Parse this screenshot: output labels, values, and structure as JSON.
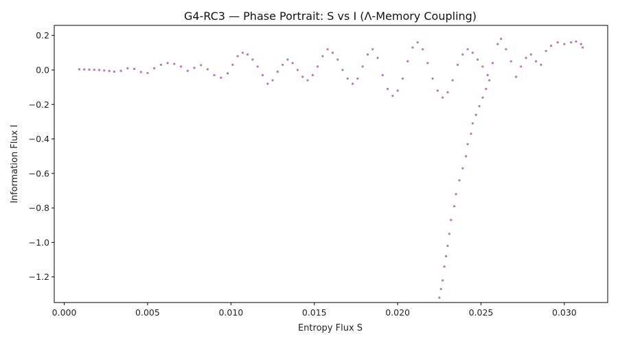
{
  "chart_data": {
    "type": "scatter",
    "title": "G4-RC3 — Phase Portrait: S vs I (Λ-Memory Coupling)",
    "xlabel": "Entropy Flux S",
    "ylabel": "Information Flux I",
    "xlim": [
      -0.0006,
      0.0326
    ],
    "ylim": [
      -1.3484,
      0.2584
    ],
    "x_ticks": [
      0.0,
      0.005,
      0.01,
      0.015,
      0.02,
      0.025,
      0.03
    ],
    "x_tick_labels": [
      "0.000",
      "0.005",
      "0.010",
      "0.015",
      "0.020",
      "0.025",
      "0.030"
    ],
    "y_ticks": [
      0.2,
      0.0,
      -0.2,
      -0.4,
      -0.6,
      -0.8,
      -1.0,
      -1.2
    ],
    "y_tick_labels": [
      "0.2",
      "0.0",
      "−0.2",
      "−0.4",
      "−0.6",
      "−0.8",
      "−1.0",
      "−1.2"
    ],
    "grid": false,
    "point_color": "#800080",
    "point_opacity": 0.55,
    "series": [
      {
        "points": [
          [
            0.0009,
            0.004
          ],
          [
            0.0012,
            0.003
          ],
          [
            0.0015,
            0.002
          ],
          [
            0.0018,
            0.001
          ],
          [
            0.0021,
            0.0
          ],
          [
            0.0024,
            -0.003
          ],
          [
            0.0027,
            -0.006
          ],
          [
            0.003,
            -0.01
          ],
          [
            0.0034,
            -0.005
          ],
          [
            0.0038,
            0.01
          ],
          [
            0.0042,
            0.006
          ],
          [
            0.0046,
            -0.012
          ],
          [
            0.005,
            -0.018
          ],
          [
            0.0054,
            0.01
          ],
          [
            0.0058,
            0.03
          ],
          [
            0.0062,
            0.04
          ],
          [
            0.0066,
            0.035
          ],
          [
            0.007,
            0.02
          ],
          [
            0.0074,
            -0.005
          ],
          [
            0.0078,
            0.012
          ],
          [
            0.0082,
            0.028
          ],
          [
            0.0086,
            0.004
          ],
          [
            0.009,
            -0.03
          ],
          [
            0.0094,
            -0.045
          ],
          [
            0.0098,
            -0.02
          ],
          [
            0.0101,
            0.03
          ],
          [
            0.0104,
            0.08
          ],
          [
            0.0107,
            0.1
          ],
          [
            0.011,
            0.09
          ],
          [
            0.0113,
            0.06
          ],
          [
            0.0116,
            0.02
          ],
          [
            0.0119,
            -0.03
          ],
          [
            0.0122,
            -0.08
          ],
          [
            0.0125,
            -0.06
          ],
          [
            0.0128,
            -0.01
          ],
          [
            0.0131,
            0.03
          ],
          [
            0.0134,
            0.06
          ],
          [
            0.0137,
            0.04
          ],
          [
            0.014,
            0.0
          ],
          [
            0.0143,
            -0.04
          ],
          [
            0.0146,
            -0.06
          ],
          [
            0.0149,
            -0.03
          ],
          [
            0.0152,
            0.02
          ],
          [
            0.0155,
            0.08
          ],
          [
            0.0158,
            0.12
          ],
          [
            0.0161,
            0.1
          ],
          [
            0.0164,
            0.06
          ],
          [
            0.0167,
            0.0
          ],
          [
            0.017,
            -0.05
          ],
          [
            0.0173,
            -0.08
          ],
          [
            0.0176,
            -0.05
          ],
          [
            0.0179,
            0.02
          ],
          [
            0.0182,
            0.09
          ],
          [
            0.0185,
            0.12
          ],
          [
            0.0188,
            0.07
          ],
          [
            0.0191,
            -0.03
          ],
          [
            0.0194,
            -0.11
          ],
          [
            0.0197,
            -0.15
          ],
          [
            0.02,
            -0.12
          ],
          [
            0.0203,
            -0.05
          ],
          [
            0.0206,
            0.05
          ],
          [
            0.0209,
            0.13
          ],
          [
            0.0212,
            0.16
          ],
          [
            0.0215,
            0.12
          ],
          [
            0.0218,
            0.04
          ],
          [
            0.0221,
            -0.05
          ],
          [
            0.0224,
            -0.12
          ],
          [
            0.0227,
            -0.16
          ],
          [
            0.023,
            -0.13
          ],
          [
            0.0233,
            -0.06
          ],
          [
            0.0236,
            0.03
          ],
          [
            0.0239,
            0.09
          ],
          [
            0.0242,
            0.12
          ],
          [
            0.0245,
            0.1
          ],
          [
            0.0248,
            0.06
          ],
          [
            0.0251,
            0.02
          ],
          [
            0.0254,
            -0.03
          ],
          [
            0.0257,
            0.04
          ],
          [
            0.026,
            0.15
          ],
          [
            0.0262,
            0.18
          ],
          [
            0.0265,
            0.12
          ],
          [
            0.0268,
            0.05
          ],
          [
            0.0271,
            -0.04
          ],
          [
            0.0274,
            0.02
          ],
          [
            0.0277,
            0.07
          ],
          [
            0.028,
            0.09
          ],
          [
            0.0283,
            0.05
          ],
          [
            0.0286,
            0.03
          ],
          [
            0.0289,
            0.11
          ],
          [
            0.0292,
            0.14
          ],
          [
            0.0296,
            0.16
          ],
          [
            0.03,
            0.15
          ],
          [
            0.0304,
            0.16
          ],
          [
            0.0307,
            0.165
          ],
          [
            0.031,
            0.15
          ],
          [
            0.0311,
            0.13
          ],
          [
            0.0225,
            -1.32
          ],
          [
            0.0226,
            -1.27
          ],
          [
            0.0227,
            -1.22
          ],
          [
            0.0228,
            -1.14
          ],
          [
            0.0229,
            -1.08
          ],
          [
            0.023,
            -1.02
          ],
          [
            0.0231,
            -0.95
          ],
          [
            0.0232,
            -0.87
          ],
          [
            0.0234,
            -0.79
          ],
          [
            0.0235,
            -0.72
          ],
          [
            0.0237,
            -0.64
          ],
          [
            0.0239,
            -0.57
          ],
          [
            0.0241,
            -0.5
          ],
          [
            0.0242,
            -0.43
          ],
          [
            0.0244,
            -0.37
          ],
          [
            0.0245,
            -0.31
          ],
          [
            0.0247,
            -0.26
          ],
          [
            0.0249,
            -0.21
          ],
          [
            0.0251,
            -0.16
          ],
          [
            0.0253,
            -0.11
          ],
          [
            0.0255,
            -0.06
          ]
        ]
      }
    ]
  }
}
